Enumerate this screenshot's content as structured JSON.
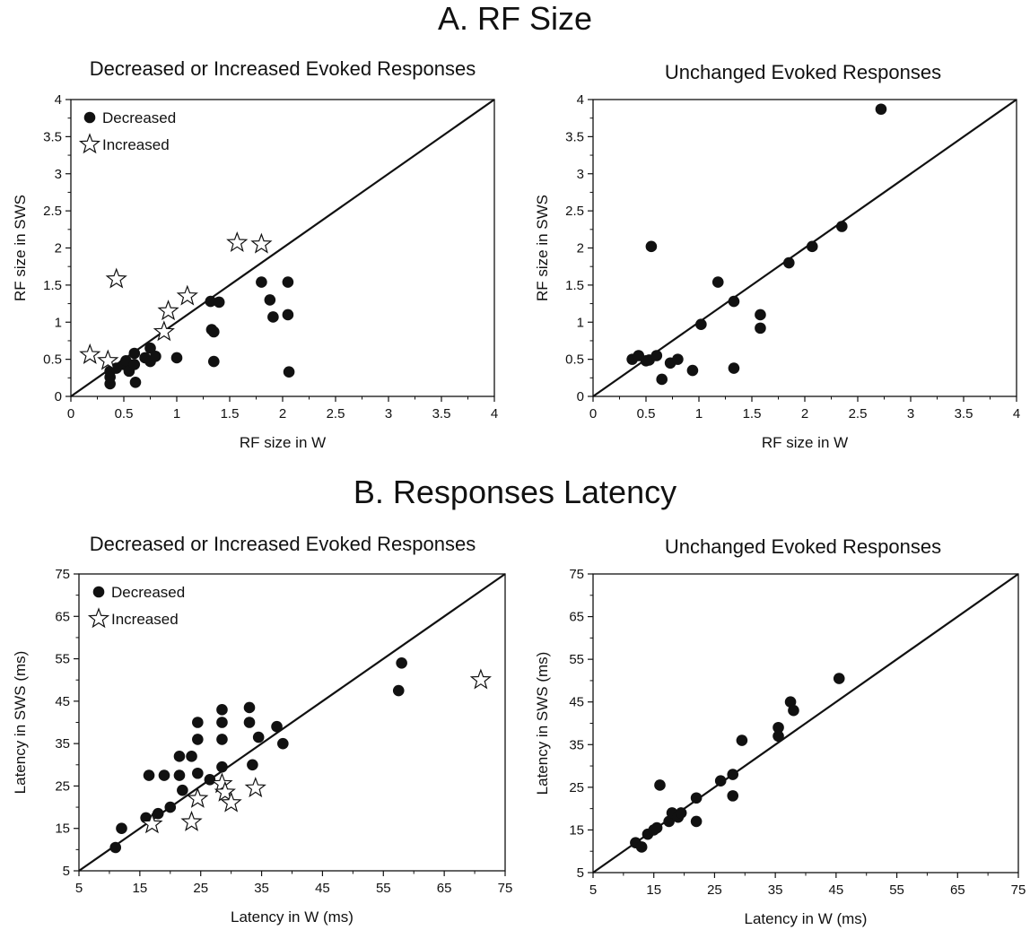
{
  "sections": [
    {
      "title": "A. RF Size"
    },
    {
      "title": "B. Responses Latency"
    }
  ],
  "panel_titles": [
    "Decreased or Increased Evoked Responses",
    "Unchanged Evoked Responses",
    "Decreased or Increased Evoked Responses",
    "Unchanged Evoked Responses"
  ],
  "chart_data": [
    {
      "type": "scatter",
      "title": "Decreased or Increased Evoked Responses",
      "xlabel": "RF size in W",
      "ylabel": "RF size in SWS",
      "xlim": [
        0,
        4
      ],
      "ylim": [
        0,
        4
      ],
      "xticks": [
        "0",
        "0.5",
        "1",
        "1.5",
        "2",
        "2.5",
        "3",
        "3.5",
        "4"
      ],
      "yticks": [
        "0",
        "0.5",
        "1",
        "1.5",
        "2",
        "2.5",
        "3",
        "3.5",
        "4"
      ],
      "identity_line": true,
      "legend": {
        "position": "top-left",
        "entries": [
          {
            "name": "Decreased",
            "marker": "circle"
          },
          {
            "name": "Increased",
            "marker": "star"
          }
        ]
      },
      "series": [
        {
          "name": "Decreased",
          "marker": "circle",
          "points": [
            [
              0.37,
              0.17
            ],
            [
              0.37,
              0.26
            ],
            [
              0.37,
              0.34
            ],
            [
              0.43,
              0.38
            ],
            [
              0.5,
              0.43
            ],
            [
              0.52,
              0.48
            ],
            [
              0.55,
              0.34
            ],
            [
              0.6,
              0.43
            ],
            [
              0.6,
              0.58
            ],
            [
              0.61,
              0.19
            ],
            [
              0.7,
              0.52
            ],
            [
              0.75,
              0.47
            ],
            [
              0.75,
              0.65
            ],
            [
              0.8,
              0.54
            ],
            [
              1.0,
              0.52
            ],
            [
              1.32,
              1.28
            ],
            [
              1.33,
              0.9
            ],
            [
              1.35,
              0.87
            ],
            [
              1.35,
              0.47
            ],
            [
              1.4,
              1.27
            ],
            [
              1.8,
              1.54
            ],
            [
              1.88,
              1.3
            ],
            [
              1.91,
              1.07
            ],
            [
              2.05,
              1.54
            ],
            [
              2.05,
              1.1
            ],
            [
              2.06,
              0.33
            ]
          ]
        },
        {
          "name": "Increased",
          "marker": "star",
          "points": [
            [
              0.18,
              0.56
            ],
            [
              0.35,
              0.48
            ],
            [
              0.43,
              1.58
            ],
            [
              0.88,
              0.87
            ],
            [
              0.92,
              1.15
            ],
            [
              1.1,
              1.35
            ],
            [
              1.57,
              2.07
            ],
            [
              1.8,
              2.05
            ]
          ]
        }
      ]
    },
    {
      "type": "scatter",
      "title": "Unchanged Evoked Responses",
      "xlabel": "RF size in W",
      "ylabel": "RF size in SWS",
      "xlim": [
        0,
        4
      ],
      "ylim": [
        0,
        4
      ],
      "xticks": [
        "0",
        "0.5",
        "1",
        "1.5",
        "2",
        "2.5",
        "3",
        "3.5",
        "4"
      ],
      "yticks": [
        "0",
        "0.5",
        "1",
        "1.5",
        "2",
        "2.5",
        "3",
        "3.5",
        "4"
      ],
      "identity_line": true,
      "series": [
        {
          "marker": "circle",
          "points": [
            [
              0.37,
              0.5
            ],
            [
              0.43,
              0.55
            ],
            [
              0.5,
              0.48
            ],
            [
              0.53,
              0.49
            ],
            [
              0.55,
              2.02
            ],
            [
              0.6,
              0.55
            ],
            [
              0.65,
              0.23
            ],
            [
              0.73,
              0.45
            ],
            [
              0.8,
              0.5
            ],
            [
              0.94,
              0.35
            ],
            [
              1.02,
              0.97
            ],
            [
              1.18,
              1.54
            ],
            [
              1.33,
              1.28
            ],
            [
              1.33,
              0.38
            ],
            [
              1.58,
              1.1
            ],
            [
              1.58,
              0.92
            ],
            [
              1.85,
              1.8
            ],
            [
              2.07,
              2.02
            ],
            [
              2.35,
              2.29
            ],
            [
              2.72,
              3.87
            ]
          ]
        }
      ]
    },
    {
      "type": "scatter",
      "title": "Decreased or Increased Evoked Responses",
      "xlabel": "Latency in W (ms)",
      "ylabel": "Latency in SWS (ms)",
      "xlim": [
        5,
        75
      ],
      "ylim": [
        5,
        75
      ],
      "xticks": [
        "5",
        "15",
        "25",
        "35",
        "45",
        "55",
        "65",
        "75"
      ],
      "yticks": [
        "5",
        "15",
        "25",
        "35",
        "45",
        "55",
        "65",
        "75"
      ],
      "identity_line": true,
      "legend": {
        "position": "top-left",
        "entries": [
          {
            "name": "Decreased",
            "marker": "circle"
          },
          {
            "name": "Increased",
            "marker": "star"
          }
        ]
      },
      "series": [
        {
          "name": "Decreased",
          "marker": "circle",
          "points": [
            [
              11,
              10.5
            ],
            [
              12,
              15
            ],
            [
              16,
              17.5
            ],
            [
              16.5,
              27.5
            ],
            [
              18,
              18.5
            ],
            [
              19,
              27.5
            ],
            [
              20,
              20
            ],
            [
              21.5,
              27.5
            ],
            [
              21.5,
              32
            ],
            [
              22,
              24
            ],
            [
              23.5,
              32
            ],
            [
              24.5,
              28
            ],
            [
              24.5,
              40
            ],
            [
              24.5,
              36
            ],
            [
              26.5,
              26.5
            ],
            [
              28.5,
              43
            ],
            [
              28.5,
              29.5
            ],
            [
              28.5,
              36
            ],
            [
              28.5,
              40
            ],
            [
              33,
              43.5
            ],
            [
              33,
              40
            ],
            [
              33.5,
              30
            ],
            [
              34.5,
              36.5
            ],
            [
              37.5,
              39
            ],
            [
              38.5,
              35
            ],
            [
              57.5,
              47.5
            ],
            [
              58,
              54
            ]
          ]
        },
        {
          "name": "Increased",
          "marker": "star",
          "points": [
            [
              17,
              16
            ],
            [
              23.5,
              16.5
            ],
            [
              24.5,
              22
            ],
            [
              28.5,
              25.5
            ],
            [
              29,
              23.5
            ],
            [
              30,
              21
            ],
            [
              34,
              24.5
            ],
            [
              71,
              50
            ]
          ]
        }
      ]
    },
    {
      "type": "scatter",
      "title": "Unchanged Evoked Responses",
      "xlabel": "Latency in W (ms)",
      "ylabel": "Latency in SWS (ms)",
      "xlim": [
        5,
        75
      ],
      "ylim": [
        5,
        75
      ],
      "xticks": [
        "5",
        "15",
        "25",
        "35",
        "45",
        "55",
        "65",
        "75"
      ],
      "yticks": [
        "5",
        "15",
        "25",
        "35",
        "45",
        "55",
        "65",
        "75"
      ],
      "identity_line": true,
      "series": [
        {
          "marker": "circle",
          "points": [
            [
              12,
              12
            ],
            [
              13,
              11
            ],
            [
              14,
              14
            ],
            [
              15,
              15
            ],
            [
              15.5,
              15.5
            ],
            [
              16,
              25.5
            ],
            [
              17.5,
              17
            ],
            [
              18,
              19
            ],
            [
              19,
              18
            ],
            [
              19.5,
              19
            ],
            [
              22,
              22.5
            ],
            [
              22,
              17
            ],
            [
              26,
              26.5
            ],
            [
              28,
              28
            ],
            [
              28,
              23
            ],
            [
              29.5,
              36
            ],
            [
              35.5,
              39
            ],
            [
              35.5,
              37
            ],
            [
              37.5,
              45
            ],
            [
              38,
              43
            ],
            [
              45.5,
              50.5
            ]
          ]
        }
      ]
    }
  ]
}
